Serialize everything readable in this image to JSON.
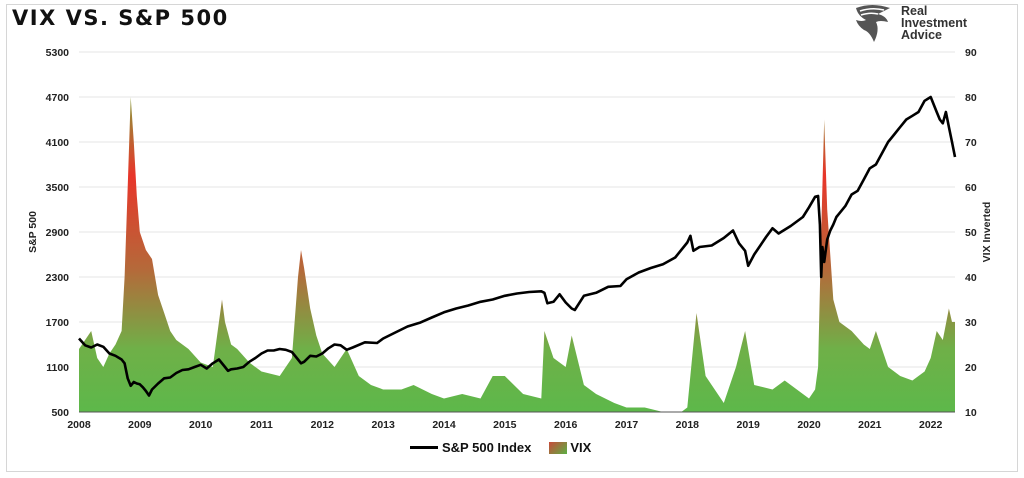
{
  "title": "VIX VS. S&P 500",
  "brand": {
    "name_lines": [
      "Real",
      "Investment",
      "Advice"
    ],
    "icon": "eagle-logo-icon"
  },
  "legend": {
    "sp500": "S&P 500 Index",
    "vix": "VIX"
  },
  "colors": {
    "sp500_line": "#000000",
    "vix_high": "#e8352a",
    "vix_low": "#5db84a",
    "grid": "#e6e6e6"
  },
  "chart_data": {
    "type": "line",
    "title": "VIX VS. S&P 500",
    "ylabel": "S&P 500",
    "y2label": "VIX Inverted",
    "grid": true,
    "legend_position": "bottom",
    "ylim": [
      500,
      5300
    ],
    "y2lim": [
      10,
      90
    ],
    "yticks": [
      500,
      1100,
      1700,
      2300,
      2900,
      3500,
      4100,
      4700,
      5300
    ],
    "y2ticks": [
      10,
      20,
      30,
      40,
      50,
      60,
      70,
      80,
      90
    ],
    "xlim": [
      2008,
      2022.4
    ],
    "xticks": [
      "2008",
      "2009",
      "2010",
      "2011",
      "2012",
      "2013",
      "2014",
      "2015",
      "2016",
      "2017",
      "2018",
      "2019",
      "2020",
      "2021",
      "2022"
    ],
    "series": [
      {
        "name": "S&P 500 Index",
        "axis": "left",
        "kind": "line",
        "x": [
          2008.0,
          2008.1,
          2008.2,
          2008.3,
          2008.4,
          2008.5,
          2008.6,
          2008.7,
          2008.75,
          2008.8,
          2008.85,
          2008.9,
          2008.95,
          2009.0,
          2009.05,
          2009.1,
          2009.15,
          2009.2,
          2009.3,
          2009.4,
          2009.5,
          2009.6,
          2009.7,
          2009.8,
          2009.9,
          2010.0,
          2010.1,
          2010.2,
          2010.3,
          2010.4,
          2010.45,
          2010.5,
          2010.6,
          2010.7,
          2010.8,
          2010.9,
          2011.0,
          2011.1,
          2011.2,
          2011.3,
          2011.4,
          2011.5,
          2011.6,
          2011.65,
          2011.7,
          2011.8,
          2011.9,
          2012.0,
          2012.1,
          2012.2,
          2012.3,
          2012.4,
          2012.5,
          2012.7,
          2012.9,
          2013.0,
          2013.2,
          2013.4,
          2013.6,
          2013.8,
          2014.0,
          2014.2,
          2014.4,
          2014.6,
          2014.8,
          2015.0,
          2015.2,
          2015.4,
          2015.6,
          2015.65,
          2015.7,
          2015.8,
          2015.9,
          2016.0,
          2016.1,
          2016.15,
          2016.3,
          2016.5,
          2016.7,
          2016.9,
          2017.0,
          2017.2,
          2017.4,
          2017.6,
          2017.8,
          2018.0,
          2018.05,
          2018.1,
          2018.2,
          2018.4,
          2018.6,
          2018.75,
          2018.85,
          2018.95,
          2019.0,
          2019.1,
          2019.3,
          2019.4,
          2019.5,
          2019.7,
          2019.9,
          2020.0,
          2020.1,
          2020.15,
          2020.18,
          2020.2,
          2020.22,
          2020.25,
          2020.3,
          2020.35,
          2020.4,
          2020.45,
          2020.5,
          2020.6,
          2020.7,
          2020.8,
          2020.9,
          2021.0,
          2021.1,
          2021.2,
          2021.3,
          2021.4,
          2021.5,
          2021.6,
          2021.7,
          2021.8,
          2021.9,
          2022.0,
          2022.05,
          2022.1,
          2022.15,
          2022.2,
          2022.25,
          2022.3,
          2022.35,
          2022.4
        ],
        "y": [
          1480,
          1390,
          1360,
          1400,
          1370,
          1280,
          1250,
          1200,
          1150,
          950,
          850,
          900,
          880,
          870,
          830,
          780,
          720,
          800,
          880,
          950,
          960,
          1020,
          1060,
          1070,
          1100,
          1130,
          1080,
          1150,
          1200,
          1100,
          1050,
          1070,
          1080,
          1100,
          1170,
          1220,
          1280,
          1320,
          1320,
          1340,
          1330,
          1300,
          1200,
          1150,
          1170,
          1250,
          1240,
          1280,
          1350,
          1400,
          1390,
          1330,
          1360,
          1430,
          1420,
          1480,
          1560,
          1640,
          1690,
          1760,
          1830,
          1880,
          1920,
          1970,
          2000,
          2050,
          2080,
          2100,
          2110,
          2090,
          1950,
          1970,
          2070,
          1960,
          1880,
          1860,
          2050,
          2090,
          2170,
          2180,
          2270,
          2360,
          2420,
          2470,
          2560,
          2760,
          2850,
          2650,
          2700,
          2720,
          2820,
          2920,
          2750,
          2650,
          2450,
          2600,
          2840,
          2950,
          2880,
          2980,
          3100,
          3230,
          3370,
          3380,
          3000,
          2300,
          2700,
          2500,
          2800,
          2920,
          3000,
          3100,
          3150,
          3250,
          3400,
          3450,
          3600,
          3750,
          3800,
          3950,
          4100,
          4200,
          4300,
          4400,
          4450,
          4500,
          4650,
          4700,
          4600,
          4500,
          4400,
          4350,
          4500,
          4300,
          4100,
          3900
        ]
      },
      {
        "name": "VIX",
        "axis": "right",
        "kind": "area",
        "x": [
          2008.0,
          2008.1,
          2008.2,
          2008.3,
          2008.4,
          2008.5,
          2008.6,
          2008.7,
          2008.75,
          2008.8,
          2008.85,
          2008.9,
          2008.95,
          2009.0,
          2009.1,
          2009.2,
          2009.3,
          2009.4,
          2009.5,
          2009.6,
          2009.8,
          2010.0,
          2010.2,
          2010.35,
          2010.4,
          2010.5,
          2010.6,
          2010.8,
          2011.0,
          2011.3,
          2011.5,
          2011.6,
          2011.65,
          2011.7,
          2011.8,
          2011.9,
          2012.0,
          2012.2,
          2012.4,
          2012.6,
          2012.8,
          2013.0,
          2013.3,
          2013.5,
          2013.8,
          2014.0,
          2014.3,
          2014.6,
          2014.8,
          2015.0,
          2015.3,
          2015.6,
          2015.65,
          2015.8,
          2016.0,
          2016.1,
          2016.3,
          2016.5,
          2016.8,
          2017.0,
          2017.3,
          2017.6,
          2017.9,
          2018.0,
          2018.1,
          2018.15,
          2018.3,
          2018.6,
          2018.8,
          2018.95,
          2019.1,
          2019.4,
          2019.6,
          2019.9,
          2020.0,
          2020.1,
          2020.15,
          2020.2,
          2020.25,
          2020.3,
          2020.4,
          2020.5,
          2020.7,
          2020.9,
          2021.0,
          2021.1,
          2021.3,
          2021.5,
          2021.7,
          2021.9,
          2022.0,
          2022.1,
          2022.2,
          2022.3,
          2022.35,
          2022.4
        ],
        "y": [
          24,
          26,
          28,
          22,
          20,
          23,
          25,
          28,
          40,
          60,
          80,
          70,
          58,
          50,
          46,
          44,
          36,
          32,
          28,
          26,
          24,
          21,
          20,
          35,
          30,
          25,
          24,
          21,
          19,
          18,
          22,
          40,
          46,
          42,
          33,
          27,
          23,
          20,
          24,
          18,
          16,
          15,
          15,
          16,
          14,
          13,
          14,
          13,
          18,
          18,
          14,
          13,
          28,
          22,
          20,
          27,
          16,
          14,
          12,
          11,
          11,
          10,
          10,
          11,
          25,
          32,
          18,
          12,
          20,
          28,
          16,
          15,
          17,
          14,
          13,
          15,
          20,
          50,
          75,
          55,
          35,
          30,
          28,
          25,
          24,
          28,
          20,
          18,
          17,
          19,
          22,
          28,
          26,
          33,
          30,
          30
        ]
      }
    ]
  }
}
